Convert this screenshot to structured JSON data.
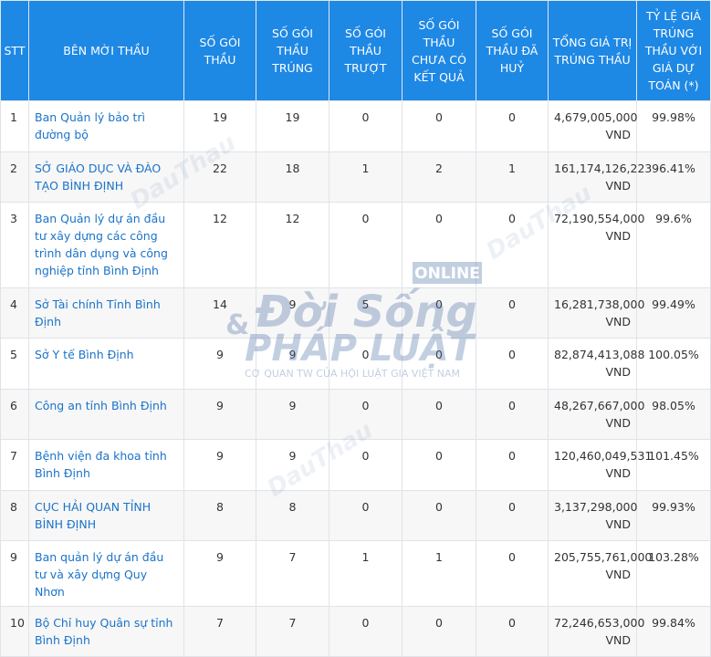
{
  "headers": {
    "stt": "STT",
    "ben_moi_thau": "BÊN MỜI THẦU",
    "so_goi_thau": "SỐ GÓI THẦU",
    "so_goi_trung": "SỐ GÓI THẦU TRÚNG",
    "so_goi_truot": "SỐ GÓI THẦU TRƯỢT",
    "so_goi_chua_kq": "SỐ GÓI THẦU CHƯA CÓ KẾT QUẢ",
    "so_goi_huy": "SỐ GÓI THẦU ĐÃ HUỶ",
    "tong_gia_tri": "TỔNG GIÁ TRỊ TRÚNG THẦU",
    "ty_le": "TỶ LỆ GIÁ TRÚNG THẦU VỚI GIÁ DỰ TOÁN (*)"
  },
  "rows": [
    {
      "stt": "1",
      "ben": "Ban Quản lý bảo trì đường bộ",
      "goi": "19",
      "trung": "19",
      "truot": "0",
      "chua": "0",
      "huy": "0",
      "tong": "4,679,005,000 VND",
      "tyle": "99.98%"
    },
    {
      "stt": "2",
      "ben": "SỞ GIÁO DỤC VÀ ĐÀO TẠO BÌNH ĐỊNH",
      "goi": "22",
      "trung": "18",
      "truot": "1",
      "chua": "2",
      "huy": "1",
      "tong": "161,174,126,223 VND",
      "tyle": "96.41%"
    },
    {
      "stt": "3",
      "ben": "Ban Quản lý dự án đầu tư xây dựng các công trình dân dụng và công nghiệp tỉnh Bình Định",
      "goi": "12",
      "trung": "12",
      "truot": "0",
      "chua": "0",
      "huy": "0",
      "tong": "72,190,554,000 VND",
      "tyle": "99.6%"
    },
    {
      "stt": "4",
      "ben": "Sở Tài chính Tỉnh Bình Định",
      "goi": "14",
      "trung": "9",
      "truot": "5",
      "chua": "0",
      "huy": "0",
      "tong": "16,281,738,000 VND",
      "tyle": "99.49%"
    },
    {
      "stt": "5",
      "ben": "Sở Y tế Bình Định",
      "goi": "9",
      "trung": "9",
      "truot": "0",
      "chua": "0",
      "huy": "0",
      "tong": "82,874,413,088 VND",
      "tyle": "100.05%"
    },
    {
      "stt": "6",
      "ben": "Công an tỉnh Bình Định",
      "goi": "9",
      "trung": "9",
      "truot": "0",
      "chua": "0",
      "huy": "0",
      "tong": "48,267,667,000 VND",
      "tyle": "98.05%"
    },
    {
      "stt": "7",
      "ben": "Bệnh viện đa khoa tỉnh Bình Định",
      "goi": "9",
      "trung": "9",
      "truot": "0",
      "chua": "0",
      "huy": "0",
      "tong": "120,460,049,531 VND",
      "tyle": "101.45%"
    },
    {
      "stt": "8",
      "ben": "CỤC HẢI QUAN TỈNH BÌNH ĐỊNH",
      "goi": "8",
      "trung": "8",
      "truot": "0",
      "chua": "0",
      "huy": "0",
      "tong": "3,137,298,000 VND",
      "tyle": "99.93%"
    },
    {
      "stt": "9",
      "ben": "Ban quản lý dự án đầu tư và xây dựng Quy Nhơn",
      "goi": "9",
      "trung": "7",
      "truot": "1",
      "chua": "1",
      "huy": "0",
      "tong": "205,755,761,000 VND",
      "tyle": "103.28%"
    },
    {
      "stt": "10",
      "ben": "Bộ Chỉ huy Quân sự tỉnh Bình Định",
      "goi": "7",
      "trung": "7",
      "truot": "0",
      "chua": "0",
      "huy": "0",
      "tong": "72,246,653,000 VND",
      "tyle": "99.84%"
    }
  ],
  "watermark": {
    "online": "ONLINE",
    "line1": "Đời Sống",
    "amp": "&",
    "line2": "PHÁP LUẬT",
    "tagline": "CƠ QUAN TW CỦA HỘI LUẬT GIA VIỆT NAM",
    "dauthau": "DauThau"
  },
  "colors": {
    "header_bg": "#1e88e5",
    "link": "#1a73c9",
    "watermark": "#4a6fa5"
  }
}
